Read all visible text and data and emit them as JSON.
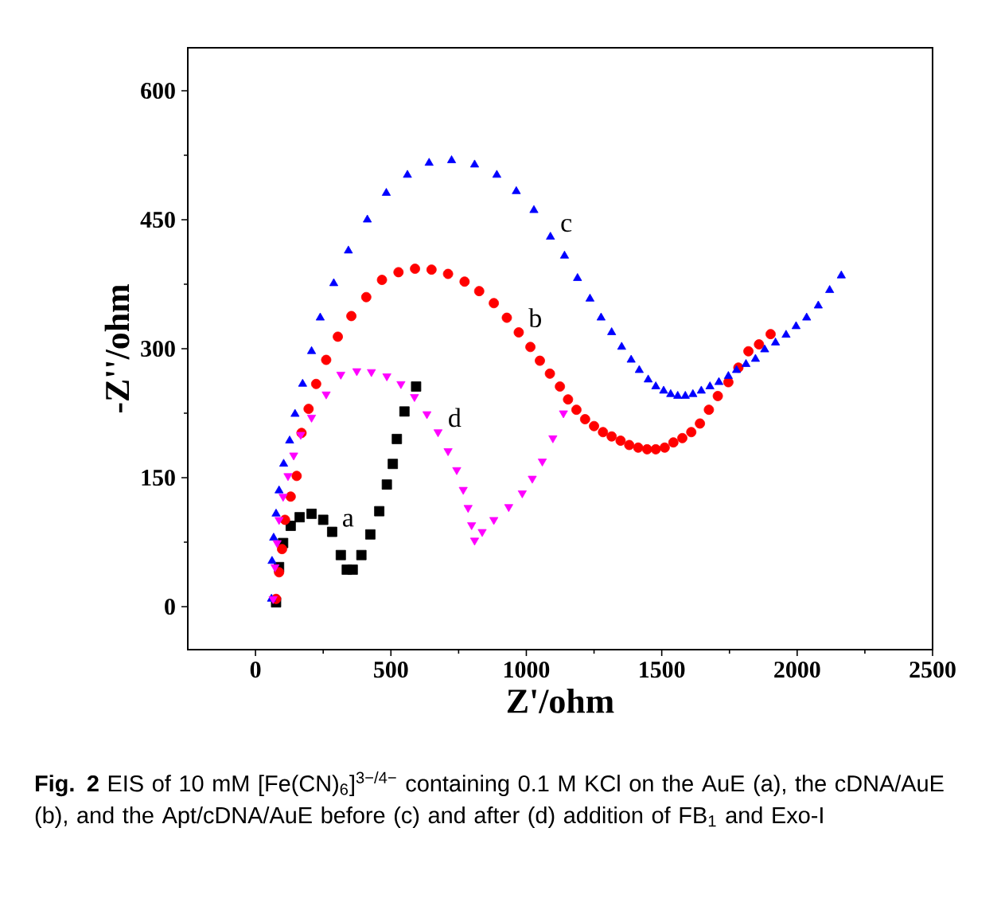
{
  "chart_data": {
    "type": "scatter",
    "xlabel": "Z'/ohm",
    "ylabel": "-Z''/ohm",
    "xlim": [
      -250,
      2500
    ],
    "ylim": [
      -50,
      650
    ],
    "xticks": [
      0,
      500,
      1000,
      1500,
      2000,
      2500
    ],
    "yticks": [
      0,
      150,
      300,
      450,
      600
    ],
    "series": [
      {
        "name": "a",
        "color": "#000000",
        "marker": "square",
        "x": [
          76,
          87,
          102,
          130,
          163,
          207,
          250,
          283,
          315,
          337,
          359,
          391,
          424,
          457,
          485,
          507,
          522,
          550,
          593
        ],
        "values": [
          5,
          46,
          74,
          94,
          104,
          108,
          101,
          87,
          60,
          43,
          43,
          60,
          84,
          111,
          142,
          166,
          195,
          227,
          256
        ]
      },
      {
        "name": "b",
        "color": "#ff0000",
        "marker": "circle",
        "x": [
          76,
          87,
          98,
          109,
          130,
          152,
          170,
          196,
          224,
          261,
          304,
          354,
          409,
          467,
          528,
          589,
          650,
          711,
          772,
          826,
          880,
          928,
          972,
          1015,
          1050,
          1087,
          1124,
          1154,
          1185,
          1217,
          1250,
          1283,
          1315,
          1348,
          1380,
          1413,
          1446,
          1478,
          1511,
          1543,
          1576,
          1609,
          1641,
          1674,
          1707,
          1746,
          1783,
          1820,
          1859,
          1902
        ],
        "values": [
          9,
          40,
          67,
          101,
          128,
          152,
          202,
          230,
          259,
          287,
          314,
          338,
          360,
          380,
          389,
          393,
          392,
          387,
          378,
          367,
          353,
          336,
          319,
          302,
          286,
          271,
          256,
          241,
          229,
          218,
          210,
          203,
          198,
          193,
          188,
          185,
          183,
          183,
          185,
          191,
          196,
          203,
          213,
          229,
          245,
          261,
          278,
          297,
          305,
          317
        ]
      },
      {
        "name": "c",
        "color": "#0000ff",
        "marker": "triangle",
        "x": [
          59,
          61,
          67,
          76,
          87,
          104,
          126,
          146,
          174,
          207,
          239,
          289,
          343,
          413,
          483,
          561,
          641,
          724,
          809,
          891,
          963,
          1028,
          1089,
          1141,
          1189,
          1235,
          1276,
          1315,
          1352,
          1387,
          1417,
          1450,
          1478,
          1507,
          1533,
          1559,
          1587,
          1615,
          1646,
          1678,
          1711,
          1746,
          1776,
          1811,
          1846,
          1880,
          1920,
          1959,
          1996,
          2035,
          2078,
          2120,
          2163
        ],
        "values": [
          9,
          53,
          80,
          108,
          135,
          166,
          193,
          224,
          259,
          297,
          336,
          376,
          414,
          450,
          481,
          502,
          516,
          519,
          514,
          502,
          483,
          461,
          430,
          408,
          382,
          358,
          336,
          319,
          302,
          287,
          275,
          264,
          256,
          251,
          247,
          245,
          245,
          247,
          251,
          256,
          261,
          268,
          275,
          282,
          288,
          299,
          307,
          316,
          326,
          336,
          350,
          368,
          385
        ]
      },
      {
        "name": "d",
        "color": "#ff00ff",
        "marker": "triangle down",
        "x": [
          65,
          72,
          80,
          87,
          102,
          120,
          141,
          167,
          207,
          261,
          315,
          374,
          428,
          485,
          537,
          587,
          633,
          674,
          711,
          743,
          767,
          785,
          798,
          809,
          837,
          880,
          935,
          985,
          1022,
          1059,
          1098,
          1137
        ],
        "values": [
          9,
          46,
          74,
          101,
          128,
          152,
          176,
          200,
          220,
          247,
          270,
          274,
          273,
          268,
          259,
          244,
          224,
          203,
          181,
          159,
          136,
          115,
          95,
          77,
          87,
          101,
          116,
          132,
          149,
          169,
          196,
          225
        ]
      }
    ],
    "annotations": [
      "**Fig. 2**  EIS of 10 mM [Fe(CN)$_{6}$]$^{3−/4−}$ containing 0.1 M KCl on the AuE (a), the cDNA/AuE (b), and the Apt/cDNA/AuE before (c) and after (d) addition of FB$_{1}$ and Exo-I"
    ]
  }
}
